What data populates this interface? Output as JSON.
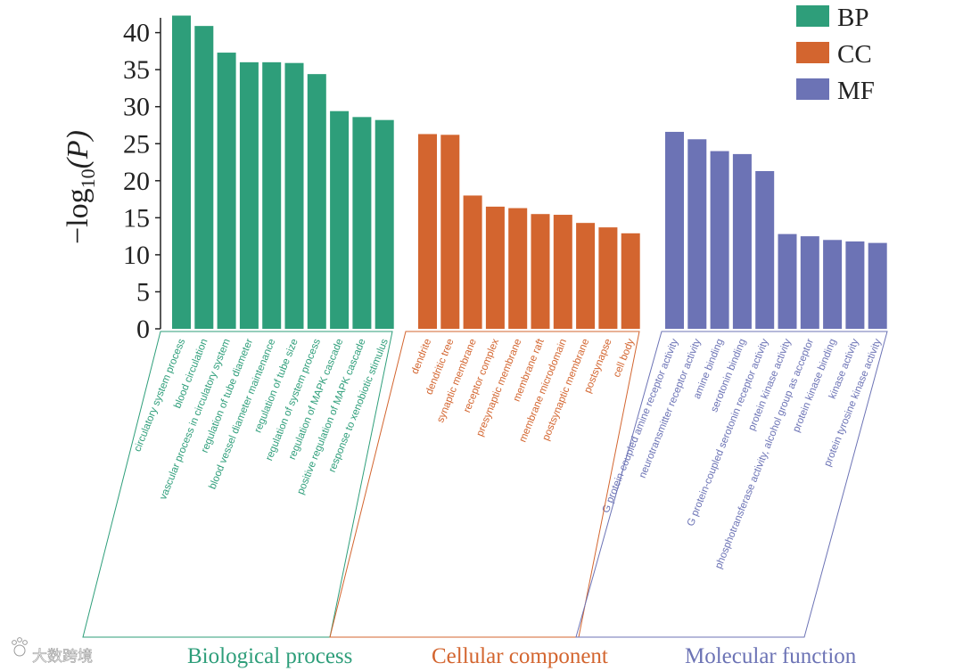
{
  "chart_data": {
    "type": "bar",
    "ylabel_main": "−log",
    "ylabel_sub": "10",
    "ylabel_rest": "(P)",
    "ylim": [
      0,
      42
    ],
    "yticks": [
      0,
      5,
      10,
      15,
      20,
      25,
      30,
      35,
      40
    ],
    "grid": false,
    "legend_position": "top-right",
    "colors": {
      "BP": "#2e9e7a",
      "CC": "#d3652f",
      "MF": "#6c73b5"
    },
    "groups": [
      {
        "key": "BP",
        "title": "Biological process",
        "categories": [
          "circulatory system process",
          "blood circulation",
          "vascular process in circulatory system",
          "regulation of tube diameter",
          "blood vessel diameter maintenance",
          "regulation of tube size",
          "regulation of system process",
          "regulation of MAPK cascade",
          "positive regulation of MAPK cascade",
          "response to xenobiotic stimulus"
        ],
        "values": [
          42.3,
          40.9,
          37.3,
          36.0,
          36.0,
          35.9,
          34.4,
          29.4,
          28.6,
          28.2
        ]
      },
      {
        "key": "CC",
        "title": "Cellular component",
        "categories": [
          "dendrite",
          "dendritic tree",
          "synaptic membrane",
          "receptor complex",
          "presynaptic membrane",
          "membrane raft",
          "membrane microdomain",
          "postsynaptic membrane",
          "postsynapse",
          "cell body"
        ],
        "values": [
          26.3,
          26.2,
          18.0,
          16.5,
          16.3,
          15.5,
          15.4,
          14.3,
          13.7,
          12.9
        ]
      },
      {
        "key": "MF",
        "title": "Molecular function",
        "categories": [
          "G protein-coupled amine receptor activity",
          "neurotransmitter receptor activity",
          "amine binding",
          "serotonin binding",
          "G protein-coupled serotonin receptor activity",
          "protein kinase activity",
          "phosphotransferase activity, alcohol group as acceptor",
          "protein kinase binding",
          "kinase activity",
          "protein tyrosine kinase activity"
        ],
        "values": [
          26.6,
          25.6,
          24.0,
          23.6,
          21.3,
          12.8,
          12.5,
          12.0,
          11.8,
          11.6
        ]
      }
    ],
    "legend": [
      {
        "key": "BP",
        "label": "BP"
      },
      {
        "key": "CC",
        "label": "CC"
      },
      {
        "key": "MF",
        "label": "MF"
      }
    ]
  },
  "watermark": {
    "icon": "paw-logo-icon",
    "text": "大数跨境"
  }
}
